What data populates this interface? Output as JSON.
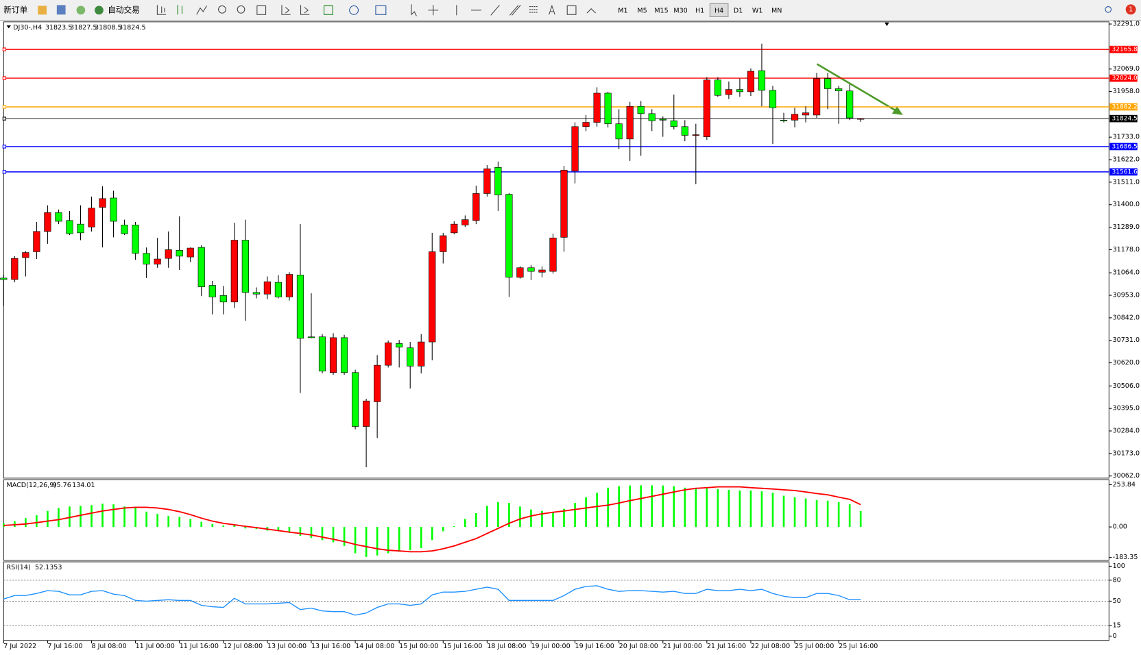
{
  "toolbar": {
    "new_order": "新订单",
    "auto_trade": "自动交易",
    "timeframes": [
      "M1",
      "M5",
      "M15",
      "M30",
      "H1",
      "H4",
      "D1",
      "W1",
      "MN"
    ],
    "active_timeframe": "H4",
    "notifications": "1"
  },
  "chart_data": [
    {
      "type": "candlestick",
      "title": "DJ30-,H4",
      "up_color": "#ff0000",
      "down_color": "#00ff00",
      "categories": [
        "7 Jul 2022",
        null,
        null,
        null,
        "7 Jul 16:00",
        null,
        null,
        null,
        "8 Jul 08:00",
        null,
        null,
        null,
        "11 Jul 00:00",
        null,
        null,
        null,
        "11 Jul 16:00",
        null,
        null,
        null,
        "12 Jul 08:00",
        null,
        null,
        null,
        "13 Jul 00:00",
        null,
        null,
        null,
        "13 Jul 16:00",
        null,
        null,
        null,
        "14 Jul 08:00",
        null,
        null,
        null,
        "15 Jul 00:00",
        null,
        null,
        null,
        "15 Jul 16:00",
        null,
        null,
        null,
        "18 Jul 08:00",
        null,
        null,
        null,
        "19 Jul 00:00",
        null,
        null,
        null,
        "19 Jul 16:00",
        null,
        null,
        null,
        "20 Jul 08:00",
        null,
        null,
        null,
        "21 Jul 00:00",
        null,
        null,
        null,
        "21 Jul 16:00",
        null,
        null,
        null,
        "22 Jul 08:00",
        null,
        null,
        null,
        "25 Jul 00:00",
        null,
        null,
        null,
        "25 Jul 16:00",
        null,
        null
      ],
      "open": [
        31038,
        31031,
        31139,
        31168,
        31268,
        31361,
        31322,
        31304,
        31290,
        31387,
        31433,
        31300,
        31300,
        31160,
        31107,
        31135,
        31175,
        31142,
        31189,
        31002,
        30952,
        30920,
        31225,
        30967,
        30959,
        31017,
        30945,
        31053,
        30748,
        30748,
        30572,
        30744,
        30572,
        30306,
        30428,
        30608,
        30715,
        30694,
        30604,
        30723,
        31168,
        31261,
        31300,
        31322,
        31455,
        31584,
        31451,
        31042,
        31089,
        31067,
        31071,
        31239,
        31566,
        31785,
        31806,
        31950,
        31799,
        31724,
        31885,
        31849,
        31821,
        31814,
        31785,
        31742,
        31735,
        32015,
        31943,
        31968,
        31957,
        32061,
        31964,
        31817,
        31817,
        31842,
        31842,
        32022,
        31972,
        31961,
        31823.5
      ],
      "high": [
        31053,
        31146,
        31171,
        31315,
        31397,
        31376,
        31369,
        31397,
        31440,
        31491,
        31469,
        31326,
        31315,
        31189,
        31236,
        31268,
        31343,
        31189,
        31200,
        31024,
        30999,
        31311,
        31326,
        30992,
        31046,
        31053,
        31067,
        31304,
        30963,
        30762,
        30766,
        30758,
        30586,
        30443,
        30658,
        30730,
        30733,
        30723,
        30762,
        31261,
        31261,
        31318,
        31347,
        31494,
        31595,
        31613,
        31458,
        31096,
        31103,
        31096,
        31257,
        31591,
        31806,
        31842,
        31979,
        31957,
        31871,
        31907,
        31911,
        31871,
        31835,
        31943,
        31817,
        31799,
        32029,
        32029,
        32007,
        32022,
        32072,
        32194,
        31986,
        31853,
        31878,
        31885,
        32050,
        32050,
        31986,
        31993,
        31827.5
      ],
      "low": [
        30902,
        31017,
        31046,
        31132,
        31207,
        31304,
        31250,
        31225,
        31268,
        31189,
        31239,
        31250,
        31128,
        31038,
        31089,
        31089,
        31078,
        31117,
        30949,
        30859,
        30859,
        30891,
        30827,
        30938,
        30934,
        30938,
        30927,
        30471,
        30741,
        30568,
        30561,
        30561,
        30292,
        30105,
        30249,
        30597,
        30597,
        30493,
        30568,
        30633,
        31110,
        31254,
        31290,
        31304,
        31440,
        31369,
        30945,
        31035,
        31028,
        31042,
        31060,
        31168,
        31505,
        31763,
        31785,
        31781,
        31674,
        31616,
        31641,
        31763,
        31735,
        31771,
        31713,
        31501,
        31720,
        31932,
        31921,
        31932,
        31936,
        31885,
        31699,
        31806,
        31781,
        31806,
        31828,
        31871,
        31799,
        31817,
        31808.5
      ],
      "close": [
        31031,
        31135,
        31164,
        31268,
        31361,
        31318,
        31257,
        31261,
        31383,
        31430,
        31318,
        31257,
        31160,
        31107,
        31132,
        31178,
        31146,
        31186,
        30995,
        30945,
        30920,
        31225,
        30967,
        30959,
        31020,
        30945,
        31056,
        30741,
        30744,
        30579,
        30744,
        30572,
        30306,
        30432,
        30608,
        30719,
        30697,
        30604,
        30723,
        31168,
        31247,
        31304,
        31326,
        31455,
        31577,
        31448,
        31042,
        31089,
        31071,
        31078,
        31236,
        31570,
        31785,
        31806,
        31950,
        31799,
        31724,
        31885,
        31849,
        31814,
        31817,
        31785,
        31742,
        31745,
        32015,
        31939,
        31968,
        31957,
        32058,
        31964,
        31878,
        31814,
        31846,
        31853,
        32022,
        31972,
        31961,
        31828,
        31824.5
      ],
      "ylim": [
        30062,
        32291
      ],
      "yticks": [
        {
          "value": 32291,
          "label": "32291.0"
        },
        {
          "value": 32069,
          "label": "32069.0"
        },
        {
          "value": 31958,
          "label": "31958.0"
        },
        {
          "value": 31733,
          "label": "31733.0"
        },
        {
          "value": 31622,
          "label": "31622.0"
        },
        {
          "value": 31511,
          "label": "31511.0"
        },
        {
          "value": 31400,
          "label": "31400.0"
        },
        {
          "value": 31289,
          "label": "31289.0"
        },
        {
          "value": 31178,
          "label": "31178.0"
        },
        {
          "value": 31064,
          "label": "31064.0"
        },
        {
          "value": 30953,
          "label": "30953.0"
        },
        {
          "value": 30842,
          "label": "30842.0"
        },
        {
          "value": 30731,
          "label": "30731.0"
        },
        {
          "value": 30620,
          "label": "30620.0"
        },
        {
          "value": 30506,
          "label": "30506.0"
        },
        {
          "value": 30395,
          "label": "30395.0"
        },
        {
          "value": 30284,
          "label": "30284.0"
        },
        {
          "value": 30173,
          "label": "30173.0"
        },
        {
          "value": 30062,
          "label": "30062.0"
        }
      ],
      "levels": [
        {
          "value": 32165.8,
          "color": "#ff0000"
        },
        {
          "value": 32024,
          "label": "32024.0",
          "color": "#ff0000"
        },
        {
          "value": 31882.2,
          "color": "#ffa500"
        },
        {
          "value": 31824.5,
          "color": "#000000"
        },
        {
          "value": 31686.5,
          "color": "#0000ff"
        },
        {
          "value": 31561.6,
          "color": "#0000ff"
        }
      ]
    },
    {
      "type": "macd",
      "title": "MACD(12,26,9)",
      "hist_color": "#00ff00",
      "signal_color": "#ff0000",
      "histogram": [
        22,
        35,
        53,
        70,
        96,
        114,
        123,
        127,
        131,
        140,
        136,
        123,
        114,
        92,
        79,
        66,
        61,
        48,
        31,
        18,
        9,
        13,
        -9,
        -13,
        -22,
        -26,
        -31,
        -53,
        -66,
        -79,
        -92,
        -114,
        -158,
        -180,
        -171,
        -158,
        -149,
        -140,
        -127,
        -79,
        -26,
        4,
        48,
        83,
        127,
        149,
        144,
        123,
        105,
        96,
        88,
        109,
        144,
        179,
        206,
        236,
        245,
        249,
        250,
        250,
        249,
        245,
        236,
        232,
        232,
        228,
        223,
        219,
        219,
        214,
        206,
        188,
        179,
        171,
        162,
        158,
        149,
        136,
        95.76
      ],
      "signal": [
        9,
        13,
        18,
        26,
        35,
        44,
        57,
        70,
        83,
        96,
        105,
        114,
        118,
        118,
        114,
        105,
        92,
        74,
        53,
        35,
        22,
        13,
        4,
        -4,
        -13,
        -22,
        -31,
        -39,
        -48,
        -61,
        -74,
        -88,
        -105,
        -118,
        -131,
        -140,
        -144,
        -149,
        -149,
        -144,
        -131,
        -114,
        -92,
        -70,
        -39,
        -9,
        22,
        48,
        66,
        79,
        88,
        96,
        105,
        114,
        123,
        131,
        144,
        158,
        171,
        184,
        197,
        210,
        223,
        232,
        236,
        241,
        241,
        241,
        236,
        232,
        228,
        223,
        219,
        210,
        201,
        193,
        179,
        166,
        134.01
      ],
      "ylim": [
        -183.35,
        253.84
      ],
      "yticks": [
        253.84,
        {
          "value": 0,
          "label": "0.00"
        },
        -183.35
      ]
    },
    {
      "type": "line",
      "title": "RSI(14)",
      "color": "#1e90ff",
      "values": [
        53,
        58,
        58,
        61,
        65,
        64,
        59,
        59,
        64,
        65,
        60,
        58,
        51,
        50,
        51,
        52,
        51,
        51,
        44,
        42,
        41,
        54,
        46,
        46,
        46,
        47,
        48,
        38,
        40,
        36,
        35,
        35,
        30,
        33,
        41,
        46,
        46,
        44,
        46,
        59,
        63,
        63,
        64,
        67,
        70,
        67,
        51,
        51,
        51,
        51,
        51,
        58,
        67,
        71,
        72,
        67,
        64,
        65,
        65,
        64,
        63,
        64,
        61,
        61,
        67,
        65,
        65,
        67,
        65,
        67,
        61,
        57,
        55,
        55,
        61,
        61,
        58,
        52,
        52.1353
      ],
      "ylim": [
        0,
        100
      ],
      "yticks": [
        100,
        80,
        50,
        15,
        0
      ],
      "levels": [
        80,
        50,
        15
      ]
    }
  ]
}
